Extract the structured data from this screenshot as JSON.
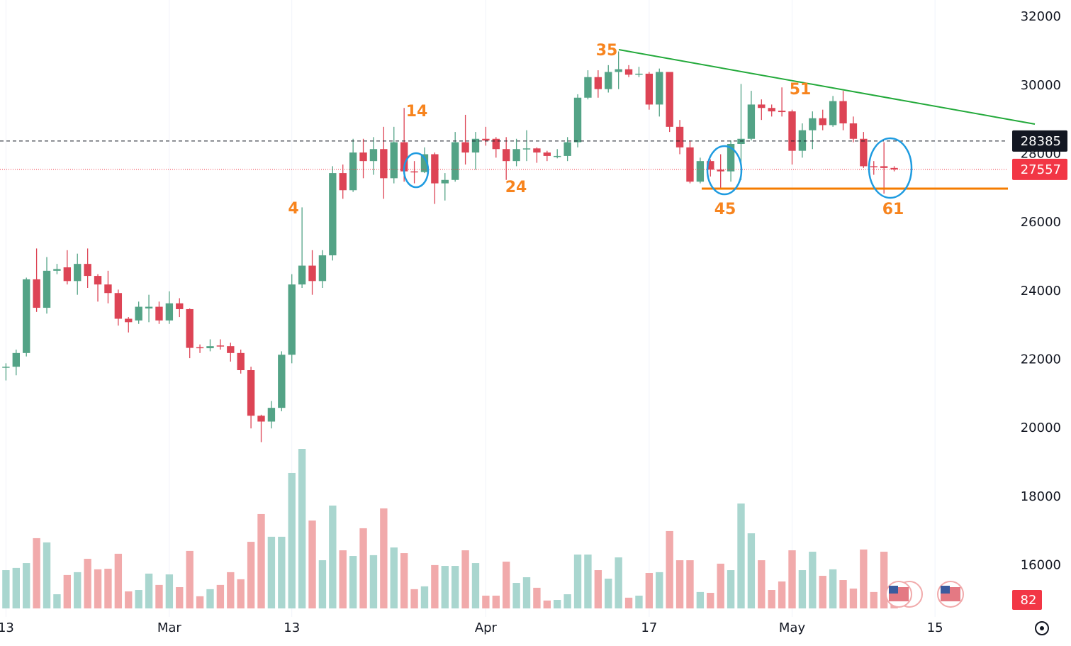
{
  "chart_data": {
    "type": "candlestick",
    "x": [
      "Feb 13",
      "Feb 14",
      "Feb 15",
      "Feb 16",
      "Feb 17",
      "Feb 18",
      "Feb 19",
      "Feb 20",
      "Feb 21",
      "Feb 22",
      "Feb 23",
      "Feb 24",
      "Feb 25",
      "Feb 26",
      "Feb 27",
      "Feb 28",
      "Mar 1",
      "Mar 2",
      "Mar 3",
      "Mar 4",
      "Mar 5",
      "Mar 6",
      "Mar 7",
      "Mar 8",
      "Mar 9",
      "Mar 10",
      "Mar 11",
      "Mar 12",
      "Mar 13",
      "Mar 14",
      "Mar 15",
      "Mar 16",
      "Mar 17",
      "Mar 18",
      "Mar 19",
      "Mar 20",
      "Mar 21",
      "Mar 22",
      "Mar 23",
      "Mar 24",
      "Mar 25",
      "Mar 26",
      "Mar 27",
      "Mar 28",
      "Mar 29",
      "Mar 30",
      "Mar 31",
      "Apr 1",
      "Apr 2",
      "Apr 3",
      "Apr 4",
      "Apr 5",
      "Apr 6",
      "Apr 7",
      "Apr 8",
      "Apr 9",
      "Apr 10",
      "Apr 11",
      "Apr 12",
      "Apr 13",
      "Apr 14",
      "Apr 15",
      "Apr 16",
      "Apr 17",
      "Apr 18",
      "Apr 19",
      "Apr 20",
      "Apr 21",
      "Apr 22",
      "Apr 23",
      "Apr 24",
      "Apr 25",
      "Apr 26",
      "Apr 27",
      "Apr 28",
      "Apr 29",
      "Apr 30",
      "May 1",
      "May 2",
      "May 3",
      "May 4",
      "May 5",
      "May 6",
      "May 7",
      "May 8",
      "May 9",
      "May 10",
      "May 11"
    ],
    "open": [
      21780,
      21800,
      22200,
      24350,
      23520,
      24600,
      24700,
      24300,
      24800,
      24450,
      24200,
      23950,
      23200,
      23150,
      23500,
      23550,
      23150,
      23650,
      23480,
      22370,
      22340,
      22420,
      22400,
      22200,
      21700,
      20370,
      20200,
      20600,
      22150,
      24200,
      24750,
      24300,
      25050,
      27450,
      26950,
      28050,
      27800,
      28150,
      27300,
      28350,
      27500,
      27480,
      28000,
      27150,
      27250,
      28350,
      28050,
      28450,
      28450,
      28150,
      27800,
      28150,
      28170,
      28050,
      27920,
      27950,
      28350,
      29650,
      30250,
      29900,
      30400,
      30480,
      30320,
      30350,
      29450,
      30400,
      28800,
      28200,
      27200,
      27800,
      27550,
      27500,
      28300,
      28450,
      29450,
      29350,
      29270,
      29250,
      28100,
      28700,
      29050,
      28850,
      29550,
      28900,
      28450,
      27650,
      27650,
      27600
    ],
    "high": [
      21900,
      22300,
      24400,
      25250,
      25000,
      24800,
      25200,
      25100,
      25250,
      24500,
      24600,
      24050,
      23250,
      23700,
      23900,
      23700,
      24000,
      23800,
      23500,
      22450,
      22600,
      22600,
      22500,
      22300,
      21800,
      20400,
      20800,
      22250,
      24500,
      26450,
      25200,
      25200,
      27650,
      27700,
      28450,
      28450,
      28500,
      28800,
      28800,
      29350,
      27800,
      28200,
      28050,
      27450,
      28650,
      29150,
      28650,
      28800,
      28500,
      28500,
      28450,
      28700,
      28200,
      28100,
      28150,
      28500,
      29750,
      30450,
      30450,
      30600,
      31000,
      30600,
      30550,
      30400,
      30500,
      30400,
      29000,
      28400,
      27900,
      27850,
      28000,
      28400,
      30050,
      29850,
      29600,
      29450,
      29950,
      29300,
      28900,
      29250,
      29300,
      29700,
      29850,
      29100,
      28650,
      27800,
      28350,
      27650
    ],
    "low": [
      21400,
      21550,
      22100,
      23400,
      23350,
      24500,
      24200,
      23900,
      24100,
      23700,
      23650,
      23000,
      22800,
      23050,
      23100,
      23050,
      23050,
      23250,
      22050,
      22200,
      22250,
      22300,
      21950,
      21600,
      20000,
      19600,
      20000,
      20500,
      21900,
      24100,
      23900,
      24100,
      24900,
      26700,
      26900,
      27300,
      27400,
      26700,
      27150,
      27200,
      27150,
      27450,
      26550,
      26650,
      27200,
      27700,
      27550,
      28250,
      27900,
      27250,
      27650,
      27800,
      27750,
      27800,
      27880,
      27800,
      28200,
      29600,
      29650,
      29800,
      29900,
      30250,
      30250,
      29300,
      29100,
      28650,
      28000,
      27150,
      27150,
      27350,
      27000,
      27200,
      27250,
      28400,
      29000,
      29100,
      29100,
      27700,
      27900,
      28150,
      28700,
      28800,
      28700,
      28350,
      27600,
      27400,
      26850,
      27500
    ],
    "close": [
      21800,
      22200,
      24350,
      23520,
      24600,
      24650,
      24300,
      24800,
      24450,
      24200,
      23950,
      23200,
      23100,
      23550,
      23550,
      23150,
      23650,
      23480,
      22350,
      22340,
      22400,
      22400,
      22200,
      21700,
      20370,
      20200,
      20600,
      22150,
      24200,
      24750,
      24300,
      25050,
      27450,
      26950,
      28050,
      27800,
      28150,
      27300,
      28350,
      27500,
      27480,
      28000,
      27150,
      27250,
      28350,
      28050,
      28450,
      28400,
      28150,
      27800,
      28150,
      28170,
      28050,
      27950,
      27950,
      28350,
      29650,
      30250,
      29900,
      30400,
      30480,
      30320,
      30350,
      29450,
      30400,
      28800,
      28200,
      27200,
      27800,
      27550,
      27500,
      28300,
      28450,
      29450,
      29350,
      29250,
      29230,
      28100,
      28700,
      29050,
      28850,
      29550,
      28900,
      28450,
      27650,
      27620,
      27600,
      27557
    ],
    "volume": [
      189,
      200,
      224,
      347,
      326,
      70,
      165,
      179,
      245,
      193,
      196,
      270,
      84,
      91,
      172,
      116,
      168,
      105,
      284,
      60,
      95,
      116,
      179,
      144,
      329,
      466,
      354,
      354,
      669,
      788,
      434,
      238,
      508,
      287,
      259,
      396,
      263,
      494,
      301,
      273,
      95,
      109,
      214,
      210,
      210,
      287,
      224,
      63,
      63,
      231,
      126,
      154,
      102,
      39,
      42,
      70,
      266,
      266,
      189,
      147,
      252,
      53,
      63,
      175,
      179,
      382,
      238,
      238,
      81,
      77,
      221,
      189,
      518,
      371,
      238,
      91,
      133,
      287,
      189,
      280,
      161,
      193,
      140,
      98,
      291,
      81,
      280,
      82
    ],
    "up_color": "#53a386",
    "down_color": "#dd4455",
    "up_volume_color": "#a9d6cf",
    "down_volume_color": "#f1aaab",
    "xlim": [
      "Feb 12",
      "May 22"
    ],
    "xticks": [
      {
        "value": "Feb 13",
        "label": "13"
      },
      {
        "value": "Mar 1",
        "label": "Mar"
      },
      {
        "value": "Mar 13",
        "label": "13"
      },
      {
        "value": "Apr 1",
        "label": "Apr"
      },
      {
        "value": "Apr 17",
        "label": "17"
      },
      {
        "value": "May 1",
        "label": "May"
      },
      {
        "value": "May 15",
        "label": "15"
      }
    ],
    "ylim": [
      14500,
      32500
    ],
    "yticks": [
      16000,
      18000,
      20000,
      22000,
      24000,
      26000,
      28000,
      30000,
      32000
    ],
    "grid": true,
    "price_markers": [
      {
        "value": 28385,
        "color": "#131722"
      },
      {
        "value": 27557,
        "color": "#f23645"
      }
    ],
    "volume_marker": {
      "value": 82,
      "color": "#f23645"
    },
    "annotations": [
      "35",
      "14",
      "4",
      "24",
      "51",
      "45",
      "61"
    ]
  }
}
